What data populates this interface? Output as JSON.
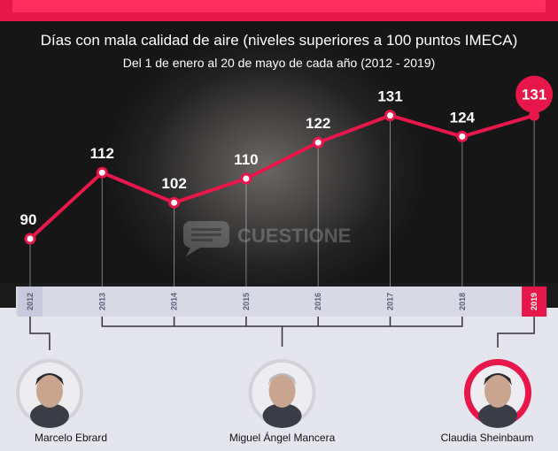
{
  "subtitle": "Días con mala calidad de aire (niveles superiores a 100 puntos IMECA)",
  "period": "Del 1 de enero al 20 de mayo de cada año (2012 - 2019)",
  "watermark": "CUESTIONE",
  "colors": {
    "accent": "#e8174b",
    "axis_band": "#d9d9e6",
    "tick_text": "#5a5f78",
    "background": "#e5e5ee"
  },
  "chart_data": {
    "type": "line",
    "title": "",
    "xlabel": "",
    "ylabel": "",
    "x": [
      "2012",
      "2013",
      "2014",
      "2015",
      "2016",
      "2017",
      "2018",
      "2019"
    ],
    "values": [
      90,
      112,
      102,
      110,
      122,
      131,
      124,
      131
    ],
    "ylim": [
      80,
      140
    ],
    "grid": false,
    "highlight": "2019",
    "data_labels": true
  },
  "people": [
    {
      "name": "Marcelo Ebrard",
      "years": [
        "2012"
      ],
      "icon": "person-icon"
    },
    {
      "name": "Miguel Ángel Mancera",
      "years": [
        "2013",
        "2014",
        "2015",
        "2016",
        "2017",
        "2018"
      ],
      "icon": "person-icon"
    },
    {
      "name": "Claudia Sheinbaum",
      "years": [
        "2019"
      ],
      "icon": "person-icon"
    }
  ]
}
